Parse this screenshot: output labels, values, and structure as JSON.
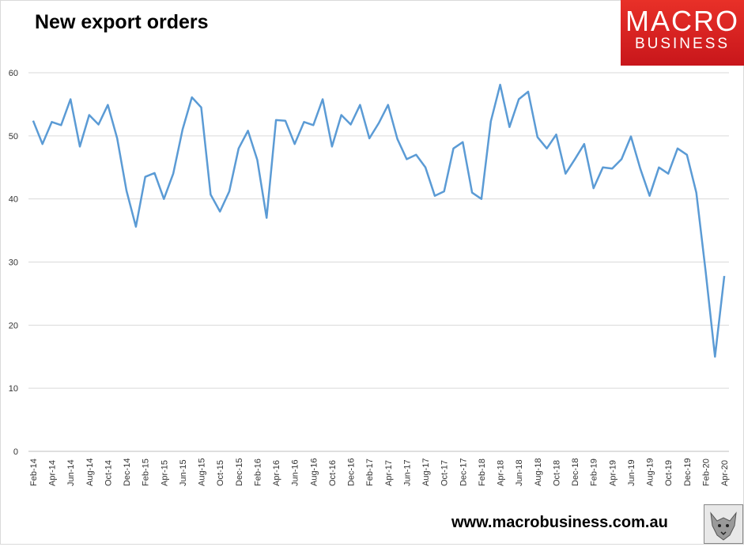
{
  "header": {
    "title": "New export orders"
  },
  "logo": {
    "line1": "MACRO",
    "line2": "BUSINESS",
    "icon": "wolf-icon"
  },
  "footer": {
    "url": "www.macrobusiness.com.au"
  },
  "colors": {
    "line": "#5b9bd5",
    "logo_red": "#e32a23",
    "grid": "#d9d9d9"
  },
  "chart_data": {
    "type": "line",
    "title": "New export orders",
    "xlabel": "",
    "ylabel": "",
    "ylim": [
      0,
      60
    ],
    "yticks": [
      0,
      10,
      20,
      30,
      40,
      50,
      60
    ],
    "grid": true,
    "x": [
      "Feb-14",
      "Mar-14",
      "Apr-14",
      "May-14",
      "Jun-14",
      "Jul-14",
      "Aug-14",
      "Sep-14",
      "Oct-14",
      "Nov-14",
      "Dec-14",
      "Jan-15",
      "Feb-15",
      "Mar-15",
      "Apr-15",
      "May-15",
      "Jun-15",
      "Jul-15",
      "Aug-15",
      "Sep-15",
      "Oct-15",
      "Nov-15",
      "Dec-15",
      "Jan-16",
      "Feb-16",
      "Mar-16",
      "Apr-16",
      "May-16",
      "Jun-16",
      "Jul-16",
      "Aug-16",
      "Sep-16",
      "Oct-16",
      "Nov-16",
      "Dec-16",
      "Jan-17",
      "Feb-17",
      "Mar-17",
      "Apr-17",
      "May-17",
      "Jun-17",
      "Jul-17",
      "Aug-17",
      "Sep-17",
      "Oct-17",
      "Nov-17",
      "Dec-17",
      "Jan-18",
      "Feb-18",
      "Mar-18",
      "Apr-18",
      "May-18",
      "Jun-18",
      "Jul-18",
      "Aug-18",
      "Sep-18",
      "Oct-18",
      "Nov-18",
      "Dec-18",
      "Jan-19",
      "Feb-19",
      "Mar-19",
      "Apr-19",
      "May-19",
      "Jun-19",
      "Jul-19",
      "Aug-19",
      "Sep-19",
      "Oct-19",
      "Nov-19",
      "Dec-19",
      "Jan-20",
      "Feb-20",
      "Mar-20",
      "Apr-20"
    ],
    "x_tick_labels": [
      "Feb-14",
      "Apr-14",
      "Jun-14",
      "Aug-14",
      "Oct-14",
      "Dec-14",
      "Feb-15",
      "Apr-15",
      "Jun-15",
      "Aug-15",
      "Oct-15",
      "Dec-15",
      "Feb-16",
      "Apr-16",
      "Jun-16",
      "Aug-16",
      "Oct-16",
      "Dec-16",
      "Feb-17",
      "Apr-17",
      "Jun-17",
      "Aug-17",
      "Oct-17",
      "Dec-17",
      "Feb-18",
      "Apr-18",
      "Jun-18",
      "Aug-18",
      "Oct-18",
      "Dec-18",
      "Feb-19",
      "Apr-19",
      "Jun-19",
      "Aug-19",
      "Oct-19",
      "Dec-19",
      "Feb-20",
      "Apr-20"
    ],
    "series": [
      {
        "name": "",
        "values": [
          52.4,
          48.7,
          52.2,
          51.7,
          55.8,
          48.3,
          53.3,
          51.8,
          54.9,
          49.6,
          41.3,
          35.6,
          43.5,
          44.1,
          40.0,
          44.0,
          51.0,
          56.1,
          54.5,
          40.7,
          38.0,
          41.2,
          48.0,
          50.8,
          46.2,
          37.0,
          52.5,
          52.4,
          48.7,
          52.2,
          51.7,
          55.8,
          48.3,
          53.3,
          51.8,
          54.9,
          49.6,
          52.0,
          54.9,
          49.5,
          46.3,
          47.0,
          45.0,
          40.5,
          41.2,
          48.0,
          49.0,
          41.0,
          40.0,
          52.3,
          58.1,
          51.4,
          55.8,
          57.0,
          49.8,
          48.0,
          50.2,
          44.0,
          46.3,
          48.7,
          41.7,
          45.0,
          44.8,
          46.3,
          49.9,
          44.8,
          40.5,
          45.0,
          44.0,
          48.0,
          47.0,
          41.0,
          28.5,
          15.0,
          27.8
        ]
      }
    ]
  }
}
